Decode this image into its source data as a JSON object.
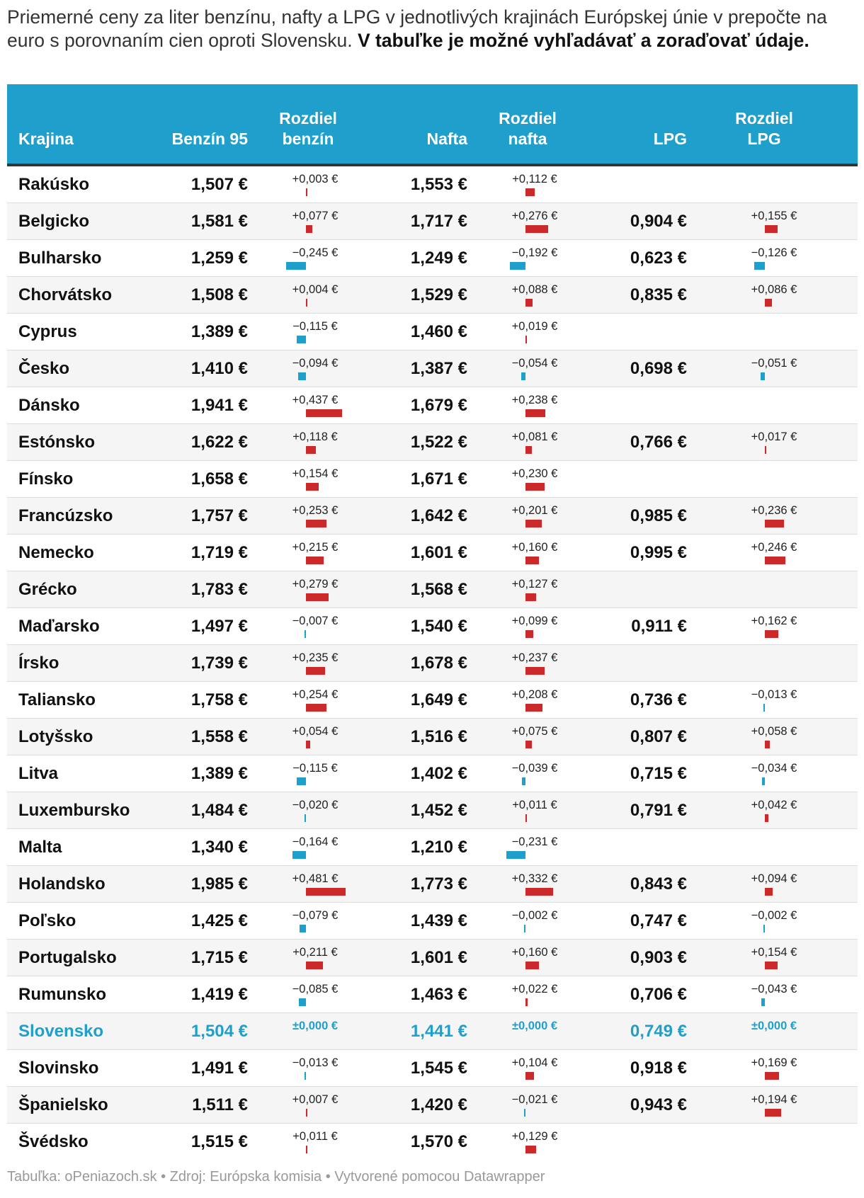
{
  "intro": {
    "text": "Priemerné ceny za liter benzínu, nafty a LPG v jednotlivých krajinách Európskej únie v prepočte na euro s porovnaním cien oproti Slovensku. ",
    "bold": "V tabuľke je možné vyhľadávať a zoraďovať údaje."
  },
  "columns": {
    "country": "Krajina",
    "petrol": "Benzín 95",
    "petrol_diff": "Rozdiel benzín",
    "diesel": "Nafta",
    "diesel_diff": "Rozdiel nafta",
    "lpg": "LPG",
    "lpg_diff": "Rozdiel LPG"
  },
  "colors": {
    "header_bg": "#1fa0cc",
    "positive": "#cc2a2a",
    "negative": "#1fa0cc",
    "highlight": "#1fa0cc"
  },
  "highlight_country": "Slovensko",
  "rows": [
    {
      "country": "Rakúsko",
      "petrol": "1,507 €",
      "petrol_diff": "+0,003 €",
      "petrol_diff_value": 0.003,
      "diesel": "1,553 €",
      "diesel_diff": "+0,112 €",
      "diesel_diff_value": 0.112,
      "lpg": "",
      "lpg_diff": "",
      "lpg_diff_value": null
    },
    {
      "country": "Belgicko",
      "petrol": "1,581 €",
      "petrol_diff": "+0,077 €",
      "petrol_diff_value": 0.077,
      "diesel": "1,717 €",
      "diesel_diff": "+0,276 €",
      "diesel_diff_value": 0.276,
      "lpg": "0,904 €",
      "lpg_diff": "+0,155 €",
      "lpg_diff_value": 0.155
    },
    {
      "country": "Bulharsko",
      "petrol": "1,259 €",
      "petrol_diff": "−0,245 €",
      "petrol_diff_value": -0.245,
      "diesel": "1,249 €",
      "diesel_diff": "−0,192 €",
      "diesel_diff_value": -0.192,
      "lpg": "0,623 €",
      "lpg_diff": "−0,126 €",
      "lpg_diff_value": -0.126
    },
    {
      "country": "Chorvátsko",
      "petrol": "1,508 €",
      "petrol_diff": "+0,004 €",
      "petrol_diff_value": 0.004,
      "diesel": "1,529 €",
      "diesel_diff": "+0,088 €",
      "diesel_diff_value": 0.088,
      "lpg": "0,835 €",
      "lpg_diff": "+0,086 €",
      "lpg_diff_value": 0.086
    },
    {
      "country": "Cyprus",
      "petrol": "1,389 €",
      "petrol_diff": "−0,115 €",
      "petrol_diff_value": -0.115,
      "diesel": "1,460 €",
      "diesel_diff": "+0,019 €",
      "diesel_diff_value": 0.019,
      "lpg": "",
      "lpg_diff": "",
      "lpg_diff_value": null
    },
    {
      "country": "Česko",
      "petrol": "1,410 €",
      "petrol_diff": "−0,094 €",
      "petrol_diff_value": -0.094,
      "diesel": "1,387 €",
      "diesel_diff": "−0,054 €",
      "diesel_diff_value": -0.054,
      "lpg": "0,698 €",
      "lpg_diff": "−0,051 €",
      "lpg_diff_value": -0.051
    },
    {
      "country": "Dánsko",
      "petrol": "1,941 €",
      "petrol_diff": "+0,437 €",
      "petrol_diff_value": 0.437,
      "diesel": "1,679 €",
      "diesel_diff": "+0,238 €",
      "diesel_diff_value": 0.238,
      "lpg": "",
      "lpg_diff": "",
      "lpg_diff_value": null
    },
    {
      "country": "Estónsko",
      "petrol": "1,622 €",
      "petrol_diff": "+0,118 €",
      "petrol_diff_value": 0.118,
      "diesel": "1,522 €",
      "diesel_diff": "+0,081 €",
      "diesel_diff_value": 0.081,
      "lpg": "0,766 €",
      "lpg_diff": "+0,017 €",
      "lpg_diff_value": 0.017
    },
    {
      "country": "Fínsko",
      "petrol": "1,658 €",
      "petrol_diff": "+0,154 €",
      "petrol_diff_value": 0.154,
      "diesel": "1,671 €",
      "diesel_diff": "+0,230 €",
      "diesel_diff_value": 0.23,
      "lpg": "",
      "lpg_diff": "",
      "lpg_diff_value": null
    },
    {
      "country": "Francúzsko",
      "petrol": "1,757 €",
      "petrol_diff": "+0,253 €",
      "petrol_diff_value": 0.253,
      "diesel": "1,642 €",
      "diesel_diff": "+0,201 €",
      "diesel_diff_value": 0.201,
      "lpg": "0,985 €",
      "lpg_diff": "+0,236 €",
      "lpg_diff_value": 0.236
    },
    {
      "country": "Nemecko",
      "petrol": "1,719 €",
      "petrol_diff": "+0,215 €",
      "petrol_diff_value": 0.215,
      "diesel": "1,601 €",
      "diesel_diff": "+0,160 €",
      "diesel_diff_value": 0.16,
      "lpg": "0,995 €",
      "lpg_diff": "+0,246 €",
      "lpg_diff_value": 0.246
    },
    {
      "country": "Grécko",
      "petrol": "1,783 €",
      "petrol_diff": "+0,279 €",
      "petrol_diff_value": 0.279,
      "diesel": "1,568 €",
      "diesel_diff": "+0,127 €",
      "diesel_diff_value": 0.127,
      "lpg": "",
      "lpg_diff": "",
      "lpg_diff_value": null
    },
    {
      "country": "Maďarsko",
      "petrol": "1,497 €",
      "petrol_diff": "−0,007 €",
      "petrol_diff_value": -0.007,
      "diesel": "1,540 €",
      "diesel_diff": "+0,099 €",
      "diesel_diff_value": 0.099,
      "lpg": "0,911 €",
      "lpg_diff": "+0,162 €",
      "lpg_diff_value": 0.162
    },
    {
      "country": "Írsko",
      "petrol": "1,739 €",
      "petrol_diff": "+0,235 €",
      "petrol_diff_value": 0.235,
      "diesel": "1,678 €",
      "diesel_diff": "+0,237 €",
      "diesel_diff_value": 0.237,
      "lpg": "",
      "lpg_diff": "",
      "lpg_diff_value": null
    },
    {
      "country": "Taliansko",
      "petrol": "1,758 €",
      "petrol_diff": "+0,254 €",
      "petrol_diff_value": 0.254,
      "diesel": "1,649 €",
      "diesel_diff": "+0,208 €",
      "diesel_diff_value": 0.208,
      "lpg": "0,736 €",
      "lpg_diff": "−0,013 €",
      "lpg_diff_value": -0.013
    },
    {
      "country": "Lotyšsko",
      "petrol": "1,558 €",
      "petrol_diff": "+0,054 €",
      "petrol_diff_value": 0.054,
      "diesel": "1,516 €",
      "diesel_diff": "+0,075 €",
      "diesel_diff_value": 0.075,
      "lpg": "0,807 €",
      "lpg_diff": "+0,058 €",
      "lpg_diff_value": 0.058
    },
    {
      "country": "Litva",
      "petrol": "1,389 €",
      "petrol_diff": "−0,115 €",
      "petrol_diff_value": -0.115,
      "diesel": "1,402 €",
      "diesel_diff": "−0,039 €",
      "diesel_diff_value": -0.039,
      "lpg": "0,715 €",
      "lpg_diff": "−0,034 €",
      "lpg_diff_value": -0.034
    },
    {
      "country": "Luxembursko",
      "petrol": "1,484 €",
      "petrol_diff": "−0,020 €",
      "petrol_diff_value": -0.02,
      "diesel": "1,452 €",
      "diesel_diff": "+0,011 €",
      "diesel_diff_value": 0.011,
      "lpg": "0,791 €",
      "lpg_diff": "+0,042 €",
      "lpg_diff_value": 0.042
    },
    {
      "country": "Malta",
      "petrol": "1,340 €",
      "petrol_diff": "−0,164 €",
      "petrol_diff_value": -0.164,
      "diesel": "1,210 €",
      "diesel_diff": "−0,231 €",
      "diesel_diff_value": -0.231,
      "lpg": "",
      "lpg_diff": "",
      "lpg_diff_value": null
    },
    {
      "country": "Holandsko",
      "petrol": "1,985 €",
      "petrol_diff": "+0,481 €",
      "petrol_diff_value": 0.481,
      "diesel": "1,773 €",
      "diesel_diff": "+0,332 €",
      "diesel_diff_value": 0.332,
      "lpg": "0,843 €",
      "lpg_diff": "+0,094 €",
      "lpg_diff_value": 0.094
    },
    {
      "country": "Poľsko",
      "petrol": "1,425 €",
      "petrol_diff": "−0,079 €",
      "petrol_diff_value": -0.079,
      "diesel": "1,439 €",
      "diesel_diff": "−0,002 €",
      "diesel_diff_value": -0.002,
      "lpg": "0,747 €",
      "lpg_diff": "−0,002 €",
      "lpg_diff_value": -0.002
    },
    {
      "country": "Portugalsko",
      "petrol": "1,715 €",
      "petrol_diff": "+0,211 €",
      "petrol_diff_value": 0.211,
      "diesel": "1,601 €",
      "diesel_diff": "+0,160 €",
      "diesel_diff_value": 0.16,
      "lpg": "0,903 €",
      "lpg_diff": "+0,154 €",
      "lpg_diff_value": 0.154
    },
    {
      "country": "Rumunsko",
      "petrol": "1,419 €",
      "petrol_diff": "−0,085 €",
      "petrol_diff_value": -0.085,
      "diesel": "1,463 €",
      "diesel_diff": "+0,022 €",
      "diesel_diff_value": 0.022,
      "lpg": "0,706 €",
      "lpg_diff": "−0,043 €",
      "lpg_diff_value": -0.043
    },
    {
      "country": "Slovensko",
      "petrol": "1,504 €",
      "petrol_diff": "±0,000 €",
      "petrol_diff_value": 0,
      "diesel": "1,441 €",
      "diesel_diff": "±0,000 €",
      "diesel_diff_value": 0,
      "lpg": "0,749 €",
      "lpg_diff": "±0,000 €",
      "lpg_diff_value": 0
    },
    {
      "country": "Slovinsko",
      "petrol": "1,491 €",
      "petrol_diff": "−0,013 €",
      "petrol_diff_value": -0.013,
      "diesel": "1,545 €",
      "diesel_diff": "+0,104 €",
      "diesel_diff_value": 0.104,
      "lpg": "0,918 €",
      "lpg_diff": "+0,169 €",
      "lpg_diff_value": 0.169
    },
    {
      "country": "Španielsko",
      "petrol": "1,511 €",
      "petrol_diff": "+0,007 €",
      "petrol_diff_value": 0.007,
      "diesel": "1,420 €",
      "diesel_diff": "−0,021 €",
      "diesel_diff_value": -0.021,
      "lpg": "0,943 €",
      "lpg_diff": "+0,194 €",
      "lpg_diff_value": 0.194
    },
    {
      "country": "Švédsko",
      "petrol": "1,515 €",
      "petrol_diff": "+0,011 €",
      "petrol_diff_value": 0.011,
      "diesel": "1,570 €",
      "diesel_diff": "+0,129 €",
      "diesel_diff_value": 0.129,
      "lpg": "",
      "lpg_diff": "",
      "lpg_diff_value": null
    }
  ],
  "footer": "Tabuľka: oPeniazoch.sk • Zdroj: Európska komisia • Vytvorené pomocou Datawrapper"
}
